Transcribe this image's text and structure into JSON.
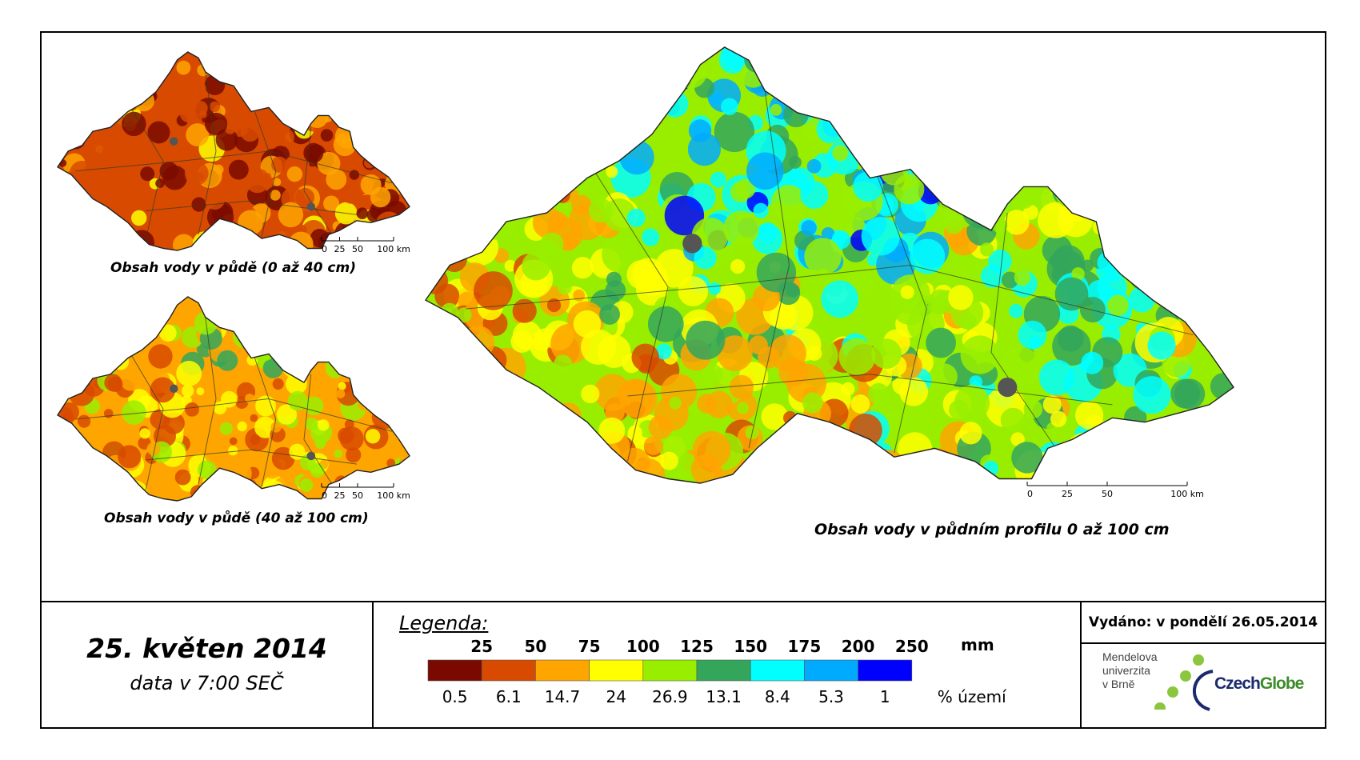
{
  "maps": [
    {
      "id": "small-top",
      "title": "Obsah vody v půdě (0 až 40 cm)"
    },
    {
      "id": "small-bottom",
      "title": "Obsah vody v půdě (40 až 100 cm)"
    },
    {
      "id": "main",
      "title": "Obsah vody v půdním profilu 0 až 100 cm"
    }
  ],
  "scale_bar": {
    "ticks": [
      "0",
      "25",
      "50",
      "100 km"
    ]
  },
  "date": {
    "main": "25. květen 2014",
    "sub": "data v 7:00 SEČ"
  },
  "legend": {
    "title": "Legenda:",
    "mm_unit": "mm",
    "pct_unit": "% území",
    "mm_ticks": [
      "25",
      "50",
      "75",
      "100",
      "125",
      "150",
      "175",
      "200",
      "250"
    ],
    "classes": [
      {
        "color": "#7a0a00",
        "percent": "0.5"
      },
      {
        "color": "#d84a00",
        "percent": "6.1"
      },
      {
        "color": "#ffa500",
        "percent": "14.7"
      },
      {
        "color": "#ffff00",
        "percent": "24"
      },
      {
        "color": "#99ee00",
        "percent": "26.9"
      },
      {
        "color": "#33a65c",
        "percent": "13.1"
      },
      {
        "color": "#00ffff",
        "percent": "8.4"
      },
      {
        "color": "#00aaff",
        "percent": "5.3"
      },
      {
        "color": "#0000ff",
        "percent": "1"
      }
    ]
  },
  "issued": "Vydáno: v pondělí 26.05.2014",
  "logos": {
    "mendel": [
      "Mendelova",
      "univerzita",
      "v Brně"
    ],
    "czechglobe": {
      "part1": "Czech",
      "part2": "Globe"
    }
  }
}
